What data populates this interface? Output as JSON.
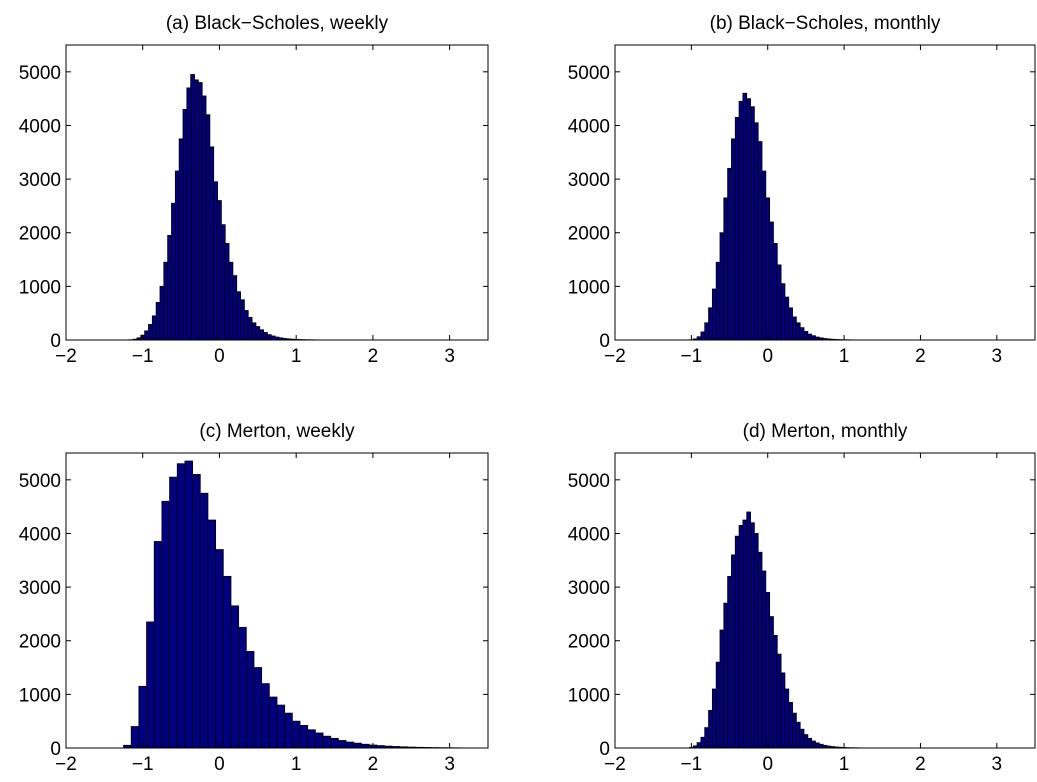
{
  "chart_data": [
    {
      "type": "bar",
      "title": "(a) Black−Scholes, weekly",
      "xlim": [
        -2,
        3.5
      ],
      "ylim": [
        0,
        5500
      ],
      "xticks": [
        -2,
        -1,
        0,
        1,
        2,
        3
      ],
      "xtick_labels": [
        "−2",
        "−1",
        "0",
        "1",
        "2",
        "3"
      ],
      "yticks": [
        0,
        1000,
        2000,
        3000,
        4000,
        5000
      ],
      "ytick_labels": [
        "0",
        "1000",
        "2000",
        "3000",
        "4000",
        "5000"
      ],
      "bin_width": 0.05,
      "x": [
        -1.15,
        -1.1,
        -1.05,
        -1.0,
        -0.95,
        -0.9,
        -0.85,
        -0.8,
        -0.75,
        -0.7,
        -0.65,
        -0.6,
        -0.55,
        -0.5,
        -0.45,
        -0.4,
        -0.35,
        -0.3,
        -0.25,
        -0.2,
        -0.15,
        -0.1,
        -0.05,
        0.0,
        0.05,
        0.1,
        0.15,
        0.2,
        0.25,
        0.3,
        0.35,
        0.4,
        0.45,
        0.5,
        0.55,
        0.6,
        0.65,
        0.7,
        0.75,
        0.8,
        0.85,
        0.9,
        0.95,
        1.0,
        1.05,
        1.1,
        1.15,
        1.2,
        1.25,
        1.3,
        1.35,
        1.4,
        1.45,
        1.5,
        1.55,
        1.6,
        1.65,
        1.7,
        1.75,
        1.8,
        1.85,
        1.9,
        1.95,
        2.0,
        2.05,
        2.1,
        2.15,
        2.2,
        2.25,
        2.3,
        2.35,
        2.4,
        2.45,
        2.5
      ],
      "values": [
        5,
        15,
        40,
        90,
        170,
        290,
        450,
        700,
        1000,
        1450,
        1950,
        2550,
        3150,
        3750,
        4300,
        4700,
        4950,
        4850,
        4800,
        4550,
        4200,
        3600,
        2950,
        2600,
        2150,
        1800,
        1450,
        1200,
        900,
        750,
        550,
        420,
        320,
        250,
        190,
        140,
        100,
        75,
        55,
        40,
        30,
        22,
        16,
        12,
        9,
        7,
        5,
        4,
        3,
        2,
        2,
        1,
        1,
        1,
        1,
        1,
        1,
        1,
        1,
        1,
        1,
        1,
        1,
        1,
        1,
        1,
        1,
        1,
        1,
        1,
        1,
        1,
        1,
        1
      ]
    },
    {
      "type": "bar",
      "title": "(b) Black−Scholes, monthly",
      "xlim": [
        -2,
        3.5
      ],
      "ylim": [
        0,
        5500
      ],
      "xticks": [
        -2,
        -1,
        0,
        1,
        2,
        3
      ],
      "xtick_labels": [
        "−2",
        "−1",
        "0",
        "1",
        "2",
        "3"
      ],
      "yticks": [
        0,
        1000,
        2000,
        3000,
        4000,
        5000
      ],
      "ytick_labels": [
        "0",
        "1000",
        "2000",
        "3000",
        "4000",
        "5000"
      ],
      "bin_width": 0.05,
      "x": [
        -1.0,
        -0.95,
        -0.9,
        -0.85,
        -0.8,
        -0.75,
        -0.7,
        -0.65,
        -0.6,
        -0.55,
        -0.5,
        -0.45,
        -0.4,
        -0.35,
        -0.3,
        -0.25,
        -0.2,
        -0.15,
        -0.1,
        -0.05,
        0.0,
        0.05,
        0.1,
        0.15,
        0.2,
        0.25,
        0.3,
        0.35,
        0.4,
        0.45,
        0.5,
        0.55,
        0.6,
        0.65,
        0.7,
        0.75,
        0.8,
        0.85,
        0.9,
        0.95,
        1.0,
        1.05,
        1.1,
        1.15,
        1.2,
        1.25,
        1.3,
        1.35,
        1.4,
        1.45,
        1.5,
        1.55,
        1.6,
        1.65,
        1.7,
        1.75,
        1.8,
        1.85,
        1.9,
        1.95,
        2.0
      ],
      "values": [
        5,
        20,
        60,
        150,
        320,
        600,
        950,
        1450,
        2000,
        2650,
        3200,
        3750,
        4150,
        4450,
        4600,
        4500,
        4350,
        4050,
        3700,
        3150,
        2650,
        2200,
        1800,
        1400,
        1050,
        800,
        600,
        430,
        320,
        230,
        160,
        110,
        80,
        55,
        40,
        28,
        20,
        14,
        10,
        7,
        5,
        4,
        3,
        2,
        2,
        1,
        1,
        1,
        1,
        1,
        1,
        1,
        1,
        1,
        1,
        1,
        1,
        1,
        1,
        1,
        1
      ]
    },
    {
      "type": "bar",
      "title": "(c) Merton, weekly",
      "xlim": [
        -2,
        3.5
      ],
      "ylim": [
        0,
        5500
      ],
      "xticks": [
        -2,
        -1,
        0,
        1,
        2,
        3
      ],
      "xtick_labels": [
        "−2",
        "−1",
        "0",
        "1",
        "2",
        "3"
      ],
      "yticks": [
        0,
        1000,
        2000,
        3000,
        4000,
        5000
      ],
      "ytick_labels": [
        "0",
        "1000",
        "2000",
        "3000",
        "4000",
        "5000"
      ],
      "bin_width": 0.1,
      "x": [
        -1.2,
        -1.1,
        -1.0,
        -0.9,
        -0.8,
        -0.7,
        -0.6,
        -0.5,
        -0.4,
        -0.3,
        -0.2,
        -0.1,
        0.0,
        0.1,
        0.2,
        0.3,
        0.4,
        0.5,
        0.6,
        0.7,
        0.8,
        0.9,
        1.0,
        1.1,
        1.2,
        1.3,
        1.4,
        1.5,
        1.6,
        1.7,
        1.8,
        1.9,
        2.0,
        2.1,
        2.2,
        2.3,
        2.4,
        2.5,
        2.6,
        2.7,
        2.8,
        2.9,
        3.0,
        3.1
      ],
      "values": [
        50,
        400,
        1150,
        2350,
        3850,
        4600,
        5050,
        5300,
        5350,
        5100,
        4750,
        4250,
        3700,
        3200,
        2650,
        2250,
        1800,
        1500,
        1200,
        950,
        800,
        650,
        500,
        420,
        340,
        280,
        220,
        180,
        140,
        110,
        90,
        70,
        55,
        45,
        35,
        28,
        22,
        17,
        13,
        10,
        8,
        6,
        5,
        4
      ]
    },
    {
      "type": "bar",
      "title": "(d) Merton, monthly",
      "xlim": [
        -2,
        3.5
      ],
      "ylim": [
        0,
        5500
      ],
      "xticks": [
        -2,
        -1,
        0,
        1,
        2,
        3
      ],
      "xtick_labels": [
        "−2",
        "−1",
        "0",
        "1",
        "2",
        "3"
      ],
      "yticks": [
        0,
        1000,
        2000,
        3000,
        4000,
        5000
      ],
      "ytick_labels": [
        "0",
        "1000",
        "2000",
        "3000",
        "4000",
        "5000"
      ],
      "bin_width": 0.05,
      "x": [
        -1.0,
        -0.95,
        -0.9,
        -0.85,
        -0.8,
        -0.75,
        -0.7,
        -0.65,
        -0.6,
        -0.55,
        -0.5,
        -0.45,
        -0.4,
        -0.35,
        -0.3,
        -0.25,
        -0.2,
        -0.15,
        -0.1,
        -0.05,
        0.0,
        0.05,
        0.1,
        0.15,
        0.2,
        0.25,
        0.3,
        0.35,
        0.4,
        0.45,
        0.5,
        0.55,
        0.6,
        0.65,
        0.7,
        0.75,
        0.8,
        0.85,
        0.9,
        0.95,
        1.0,
        1.05,
        1.1,
        1.15,
        1.2,
        1.25,
        1.3,
        1.35,
        1.4,
        1.45,
        1.5,
        1.55,
        1.6,
        1.65,
        1.7,
        1.75,
        1.8,
        1.85,
        1.9,
        1.95,
        2.0
      ],
      "values": [
        10,
        40,
        100,
        200,
        380,
        700,
        1100,
        1600,
        2200,
        2700,
        3200,
        3600,
        3950,
        4150,
        4250,
        4400,
        4200,
        4000,
        3650,
        3300,
        2900,
        2450,
        2100,
        1750,
        1400,
        1100,
        850,
        650,
        480,
        350,
        250,
        180,
        130,
        95,
        70,
        50,
        36,
        26,
        19,
        14,
        10,
        7,
        5,
        4,
        3,
        2,
        2,
        1,
        1,
        1,
        1,
        1,
        1,
        1,
        1,
        1,
        1,
        1,
        1,
        1,
        1
      ]
    }
  ]
}
